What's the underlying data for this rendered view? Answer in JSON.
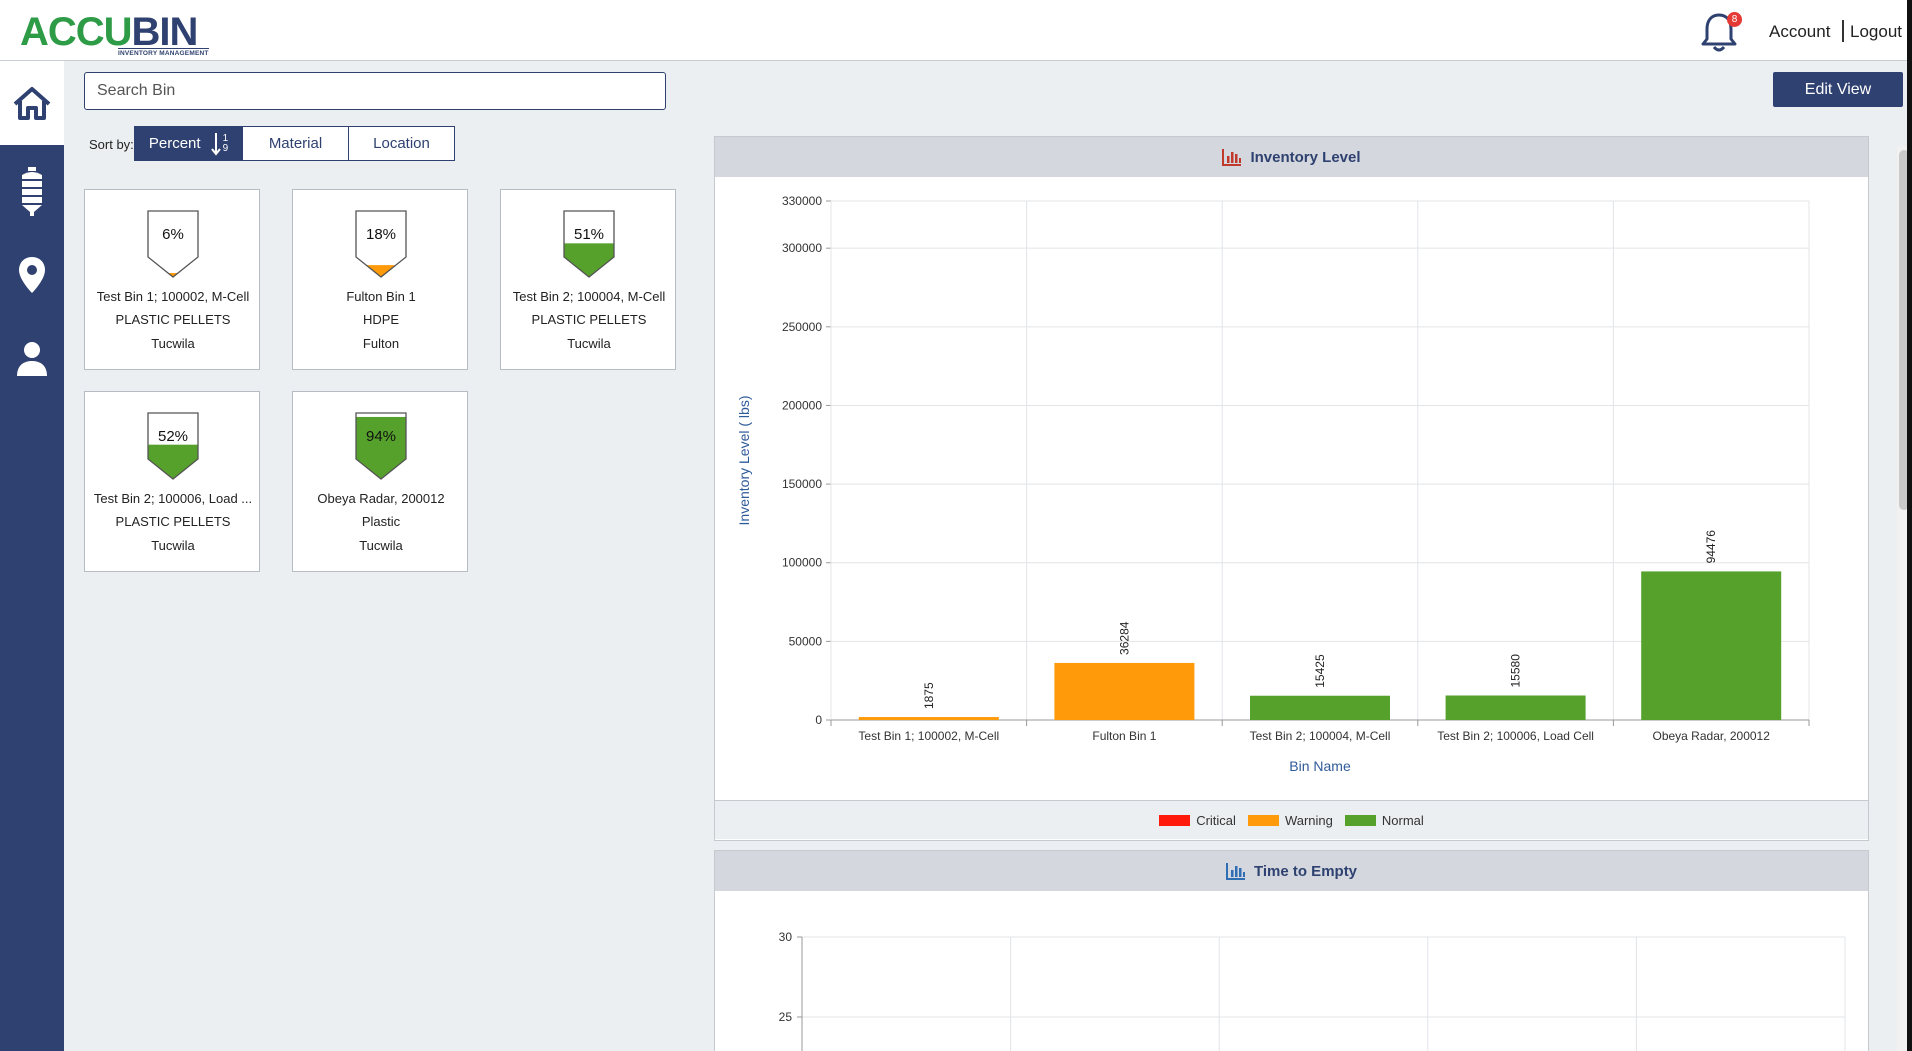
{
  "header": {
    "logo_main": "ACCU",
    "logo_bin": "BIN",
    "logo_sub": "INVENTORY MANAGEMENT",
    "notification_count": "8",
    "account": "Account",
    "logout": "Logout"
  },
  "sidebar": {
    "items": [
      {
        "icon": "home-icon",
        "active": true
      },
      {
        "icon": "silo-icon",
        "active": false
      },
      {
        "icon": "location-pin-icon",
        "active": false
      },
      {
        "icon": "user-icon",
        "active": false
      }
    ]
  },
  "search": {
    "placeholder": "Search Bin",
    "value": ""
  },
  "toolbar": {
    "edit_view": "Edit View"
  },
  "sort": {
    "label": "Sort by:",
    "options": [
      "Percent",
      "Material",
      "Location"
    ],
    "active": "Percent",
    "direction_top": "1",
    "direction_bottom": "9"
  },
  "bins": [
    {
      "percent": "6%",
      "level": 0.06,
      "status": "Warning",
      "name": "Test Bin 1; 100002, M-Cell",
      "material": "PLASTIC PELLETS",
      "location": "Tucwila"
    },
    {
      "percent": "18%",
      "level": 0.18,
      "status": "Warning",
      "name": "Fulton Bin 1",
      "material": "HDPE",
      "location": "Fulton"
    },
    {
      "percent": "51%",
      "level": 0.51,
      "status": "Normal",
      "name": "Test Bin 2; 100004, M-Cell",
      "material": "PLASTIC PELLETS",
      "location": "Tucwila"
    },
    {
      "percent": "52%",
      "level": 0.52,
      "status": "Normal",
      "name": "Test Bin 2; 100006, Load ...",
      "material": "PLASTIC PELLETS",
      "location": "Tucwila"
    },
    {
      "percent": "94%",
      "level": 0.94,
      "status": "Normal",
      "name": "Obeya Radar, 200012",
      "material": "Plastic",
      "location": "Tucwila"
    }
  ],
  "colors": {
    "critical": "#ff1a0a",
    "warning": "#ff9a0a",
    "normal": "#55a12b",
    "brand": "#2f4170"
  },
  "inventory_panel": {
    "title": "Inventory Level",
    "legend": [
      "Critical",
      "Warning",
      "Normal"
    ]
  },
  "time_panel": {
    "title": "Time to Empty"
  },
  "chart_data": [
    {
      "type": "bar",
      "xlabel": "Bin Name",
      "ylabel": "Inventory Level ( lbs)",
      "categories": [
        "Test Bin 1; 100002, M-Cell",
        "Fulton Bin 1",
        "Test Bin 2; 100004, M-Cell",
        "Test Bin 2; 100006, Load Cell",
        "Obeya Radar, 200012"
      ],
      "values": [
        1875,
        36284,
        15425,
        15580,
        94476
      ],
      "value_labels": [
        "1875",
        "36284",
        "15425",
        "15580",
        "94476"
      ],
      "bar_status": [
        "Warning",
        "Warning",
        "Normal",
        "Normal",
        "Normal"
      ],
      "ylim": [
        0,
        330000
      ],
      "yticks": [
        0,
        50000,
        100000,
        150000,
        200000,
        250000,
        300000,
        330000
      ],
      "ytick_labels": [
        "0",
        "50000",
        "100000",
        "150000",
        "200000",
        "250000",
        "300000",
        "330000"
      ],
      "grid": true,
      "legend": [
        "Critical",
        "Warning",
        "Normal"
      ],
      "legend_position": "bottom"
    },
    {
      "type": "line",
      "yticks_visible": [
        30,
        25
      ],
      "ytick_labels": [
        "30",
        "25"
      ],
      "grid": true
    }
  ]
}
